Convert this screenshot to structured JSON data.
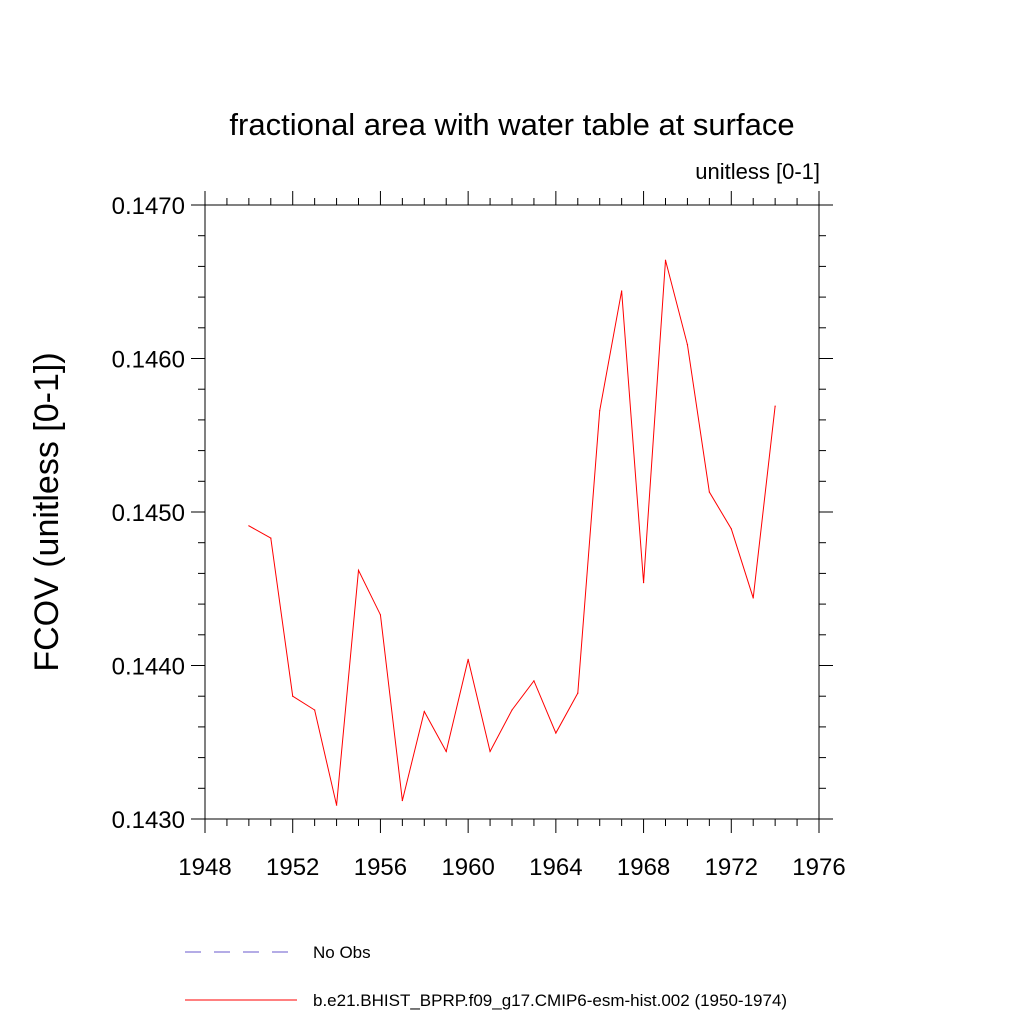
{
  "chart_data": {
    "type": "line",
    "title": "fractional area with water table at surface",
    "units_label": "unitless [0-1]",
    "ylabel": "FCOV  (unitless [0-1])",
    "xlabel": "",
    "xlim": [
      1948,
      1976
    ],
    "ylim": [
      0.143,
      0.147
    ],
    "x_major_ticks": [
      1948,
      1952,
      1956,
      1960,
      1964,
      1968,
      1972,
      1976
    ],
    "x_tick_labels": [
      "1948",
      "1952",
      "1956",
      "1960",
      "1964",
      "1968",
      "1972",
      "1976"
    ],
    "y_major_ticks": [
      0.143,
      0.144,
      0.145,
      0.146,
      0.147
    ],
    "y_tick_labels": [
      "0.1430",
      "0.1440",
      "0.1450",
      "0.1460",
      "0.1470"
    ],
    "grid": false,
    "legend_position": "bottom",
    "series": [
      {
        "name": "b.e21.BHIST_BPRP.f09_g17.CMIP6-esm-hist.002 (1950-1974)",
        "color": "#ff0000",
        "style": "solid",
        "x": [
          1950,
          1951,
          1952,
          1953,
          1954,
          1955,
          1956,
          1957,
          1958,
          1959,
          1960,
          1961,
          1962,
          1963,
          1964,
          1965,
          1966,
          1967,
          1968,
          1969,
          1970,
          1971,
          1972,
          1973,
          1974
        ],
        "y": [
          0.14491,
          0.14483,
          0.1438,
          0.14371,
          0.14309,
          0.14462,
          0.14433,
          0.14312,
          0.1437,
          0.14344,
          0.14404,
          0.14344,
          0.14371,
          0.1439,
          0.14356,
          0.14382,
          0.14566,
          0.14644,
          0.14454,
          0.14664,
          0.14609,
          0.14513,
          0.14489,
          0.14444,
          0.14569
        ]
      }
    ],
    "legend": [
      {
        "label": "No Obs",
        "color": "#6a5acd",
        "style": "dashed"
      },
      {
        "label": "b.e21.BHIST_BPRP.f09_g17.CMIP6-esm-hist.002 (1950-1974)",
        "color": "#ff0000",
        "style": "solid"
      }
    ]
  }
}
